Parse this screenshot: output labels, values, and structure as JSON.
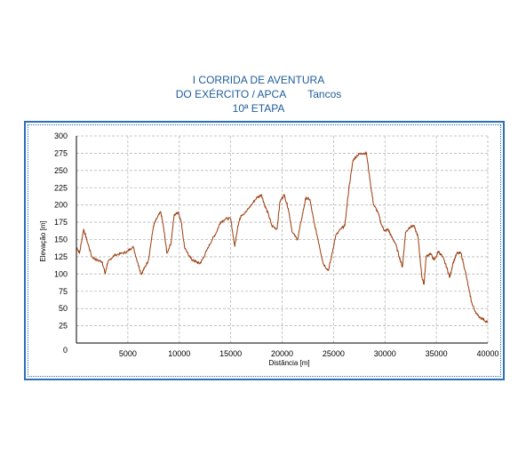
{
  "chart_data": {
    "type": "line",
    "title_lines": [
      "I CORRIDA DE AVENTURA",
      "DO EXÉRCITO / APCA",
      "10ª ETAPA"
    ],
    "location": "Tancos",
    "xlabel": "Distância [m]",
    "ylabel": "Elevação [m]",
    "xlim": [
      0,
      40000
    ],
    "ylim": [
      0,
      300
    ],
    "xticks": [
      0,
      5000,
      10000,
      15000,
      20000,
      25000,
      30000,
      35000,
      40000
    ],
    "yticks": [
      25,
      50,
      75,
      100,
      125,
      150,
      175,
      200,
      225,
      250,
      275,
      300
    ],
    "grid": true,
    "colors": {
      "line": "#9a3b0c",
      "title": "#1f5c99",
      "frame": "#2e6fb5",
      "grid": "#b8b8b8"
    },
    "series": [
      {
        "x": [
          0,
          300,
          700,
          1000,
          1500,
          2000,
          2500,
          2800,
          3000,
          3300,
          3800,
          4500,
          5000,
          5500,
          6000,
          6300,
          6600,
          7000,
          7500,
          7800,
          8200,
          8500,
          8800,
          9200,
          9500,
          9900,
          10200,
          10500,
          11000,
          11300,
          11600,
          12000,
          12300,
          12700,
          13200,
          13600,
          14000,
          14500,
          15000,
          15400,
          15700,
          16000,
          16500,
          17000,
          17500,
          18000,
          18300,
          18700,
          19000,
          19500,
          19800,
          20200,
          20600,
          21000,
          21500,
          21900,
          22300,
          22700,
          23100,
          23500,
          24000,
          24500,
          24800,
          25200,
          25700,
          26100,
          26500,
          26900,
          27300,
          27700,
          28200,
          28600,
          28900,
          29300,
          29700,
          30000,
          30300,
          30600,
          31000,
          31400,
          31700,
          32000,
          32400,
          32800,
          33200,
          33600,
          33800,
          34000,
          34400,
          34800,
          35200,
          35600,
          36000,
          36300,
          36600,
          37000,
          37400,
          37800,
          38200,
          38500,
          39000,
          39500,
          40000
        ],
        "values": [
          140,
          130,
          165,
          150,
          125,
          120,
          118,
          100,
          115,
          122,
          128,
          130,
          133,
          140,
          115,
          100,
          108,
          120,
          170,
          180,
          190,
          165,
          130,
          145,
          185,
          190,
          175,
          140,
          125,
          120,
          118,
          115,
          122,
          135,
          150,
          160,
          175,
          180,
          180,
          140,
          170,
          185,
          190,
          200,
          210,
          215,
          200,
          185,
          170,
          165,
          205,
          215,
          195,
          160,
          150,
          180,
          210,
          208,
          175,
          150,
          115,
          105,
          125,
          155,
          165,
          170,
          225,
          265,
          272,
          275,
          275,
          230,
          200,
          190,
          170,
          162,
          165,
          155,
          145,
          125,
          110,
          160,
          168,
          170,
          155,
          95,
          85,
          125,
          130,
          120,
          133,
          125,
          110,
          95,
          115,
          130,
          130,
          105,
          75,
          55,
          40,
          35,
          30
        ]
      }
    ]
  }
}
